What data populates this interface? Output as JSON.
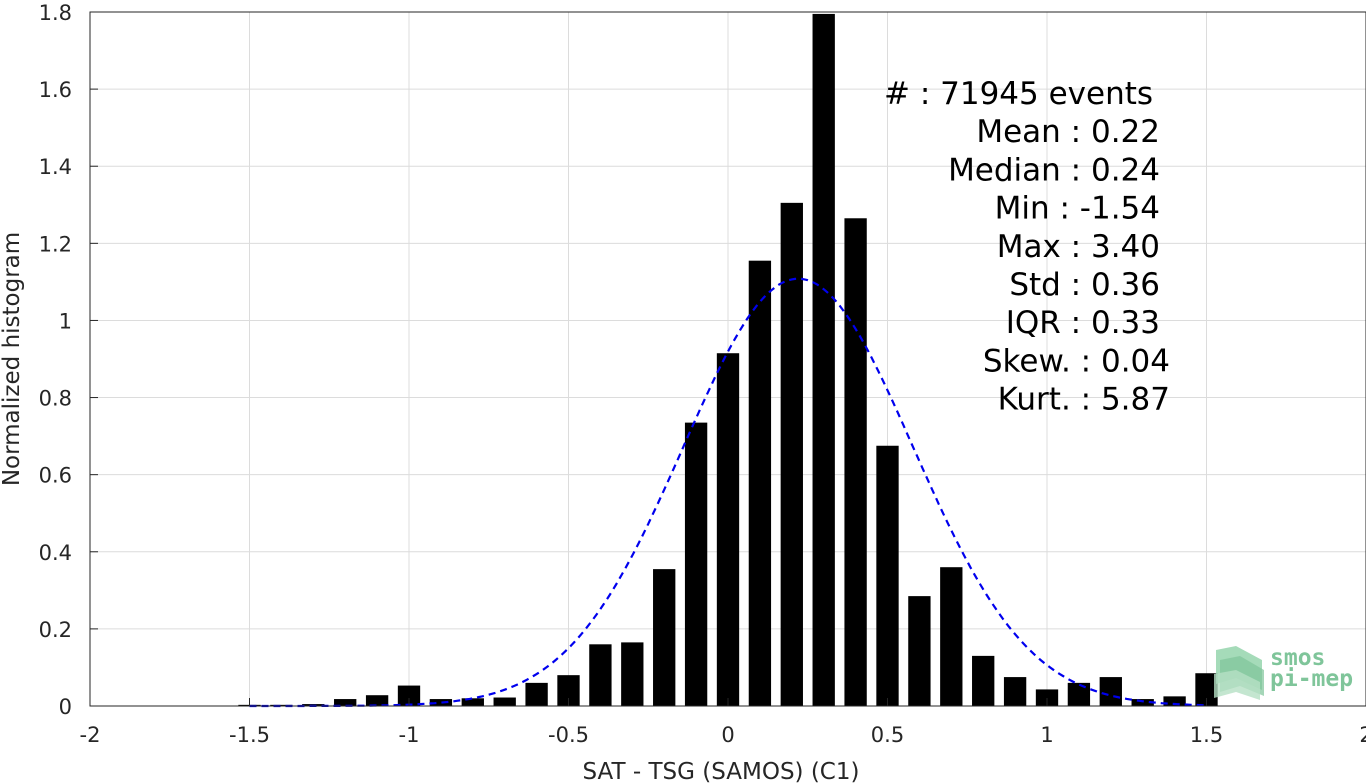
{
  "chart_data": {
    "type": "bar",
    "title": "",
    "xlabel": "SAT - TSG (SAMOS) (C1)",
    "ylabel": "Normalized histogram",
    "xlim": [
      -2,
      2
    ],
    "ylim": [
      0,
      1.8
    ],
    "grid": true,
    "xticks": [
      -2,
      -1.5,
      -1,
      -0.5,
      0,
      0.5,
      1,
      1.5,
      2
    ],
    "xtick_labels": [
      "-2",
      "-1.5",
      "-1",
      "-0.5",
      "0",
      "0.5",
      "1",
      "1.5",
      "2"
    ],
    "yticks": [
      0,
      0.2,
      0.4,
      0.6,
      0.8,
      1,
      1.2,
      1.4,
      1.6,
      1.8
    ],
    "ytick_labels": [
      "0",
      "0.2",
      "0.4",
      "0.6",
      "0.8",
      "1",
      "1.2",
      "1.4",
      "1.6",
      "1.8"
    ],
    "bar_width": 0.07,
    "series": [
      {
        "x": [
          -1.5,
          -1.4,
          -1.3,
          -1.2,
          -1.1,
          -1.0,
          -0.9,
          -0.8,
          -0.7,
          -0.6,
          -0.5,
          -0.4,
          -0.3,
          -0.2,
          -0.1,
          0.0,
          0.1,
          0.2,
          0.3,
          0.4,
          0.5,
          0.6,
          0.7,
          0.8,
          0.9,
          1.0,
          1.1,
          1.2,
          1.3,
          1.4,
          1.5
        ],
        "values": [
          0.003,
          0.003,
          0.005,
          0.018,
          0.028,
          0.053,
          0.018,
          0.02,
          0.022,
          0.06,
          0.08,
          0.16,
          0.165,
          0.355,
          0.735,
          0.915,
          1.155,
          1.305,
          1.795,
          1.265,
          0.675,
          0.285,
          0.36,
          0.13,
          0.075,
          0.043,
          0.06,
          0.075,
          0.018,
          0.025,
          0.085
        ],
        "color": "#000000"
      }
    ],
    "fit_curve": {
      "type": "gaussian",
      "mean": 0.22,
      "std": 0.36,
      "style": "dashed",
      "color": "#0000ee"
    },
    "annotations": [
      "#  : 71945 events",
      "Mean : 0.22",
      "Median : 0.24",
      "Min : -1.54",
      "Max : 3.40",
      "Std : 0.36",
      "IQR : 0.33",
      "Skew. : 0.04",
      "Kurt. : 5.87"
    ]
  },
  "logo": {
    "line1": "smos",
    "line2": "pi-mep",
    "color": "#7fc59a"
  }
}
